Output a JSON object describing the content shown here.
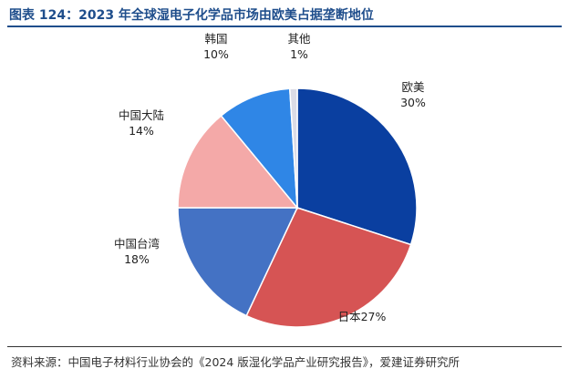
{
  "title": "图表 124：2023 年全球湿电子化学品市场由欧美占据垄断地位",
  "source": "资料来源：中国电子材料行业协会的《2024 版湿化学品产业研究报告》，爱建证券研究所",
  "chart_data": {
    "type": "pie",
    "slices": [
      {
        "label": "欧美",
        "value": 30,
        "value_label": "30%",
        "color": "#0a3fa0"
      },
      {
        "label": "日本",
        "value": 27,
        "value_label": "27%",
        "color": "#d65454"
      },
      {
        "label": "中国台湾",
        "value": 18,
        "value_label": "18%",
        "color": "#4472c4"
      },
      {
        "label": "中国大陆",
        "value": 14,
        "value_label": "14%",
        "color": "#f4a9a8"
      },
      {
        "label": "韩国",
        "value": 10,
        "value_label": "10%",
        "color": "#2f86e6"
      },
      {
        "label": "其他",
        "value": 1,
        "value_label": "1%",
        "color": "#dcdce6"
      }
    ]
  }
}
